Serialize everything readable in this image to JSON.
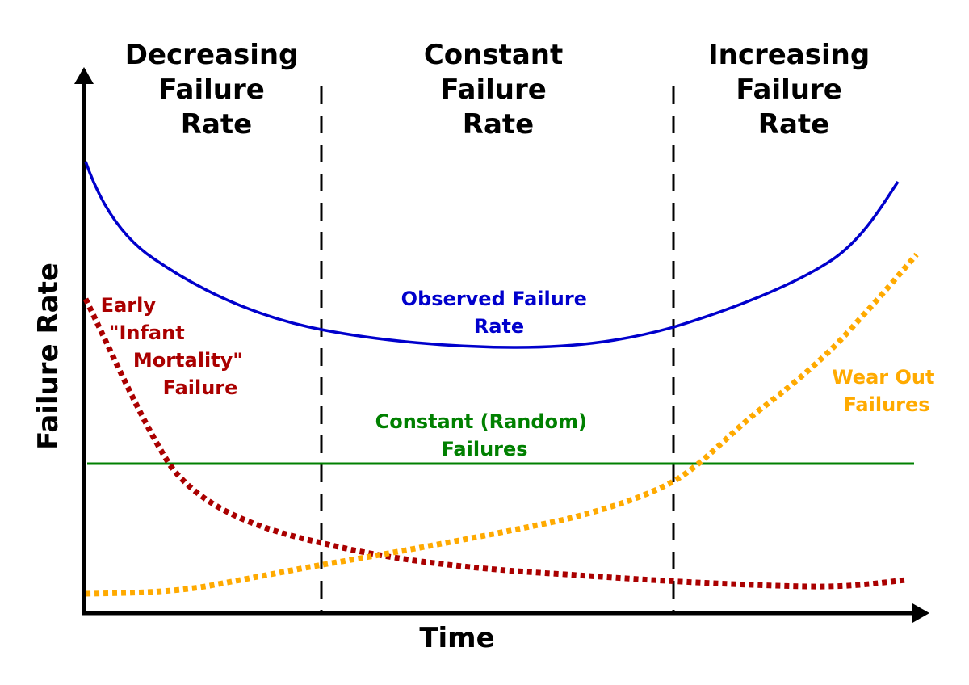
{
  "headers": [
    {
      "lines": [
        "Decreasing",
        "Failure",
        "Rate"
      ]
    },
    {
      "lines": [
        "Constant",
        "Failure",
        "Rate"
      ]
    },
    {
      "lines": [
        "Increasing",
        "Failure",
        "Rate"
      ]
    }
  ],
  "axes": {
    "x_label": "Time",
    "y_label": "Failure Rate"
  },
  "curves": {
    "observed": {
      "lines": [
        "Observed Failure",
        "Rate"
      ],
      "color": "#0000cc"
    },
    "infant": {
      "lines": [
        "Early",
        "\"Infant",
        "Mortality\"",
        "Failure"
      ],
      "color": "#aa0000"
    },
    "constant": {
      "lines": [
        "Constant (Random)",
        "Failures"
      ],
      "color": "#008000"
    },
    "wearout": {
      "lines": [
        "Wear Out",
        "Failures"
      ],
      "color": "#ffaa00"
    }
  }
}
